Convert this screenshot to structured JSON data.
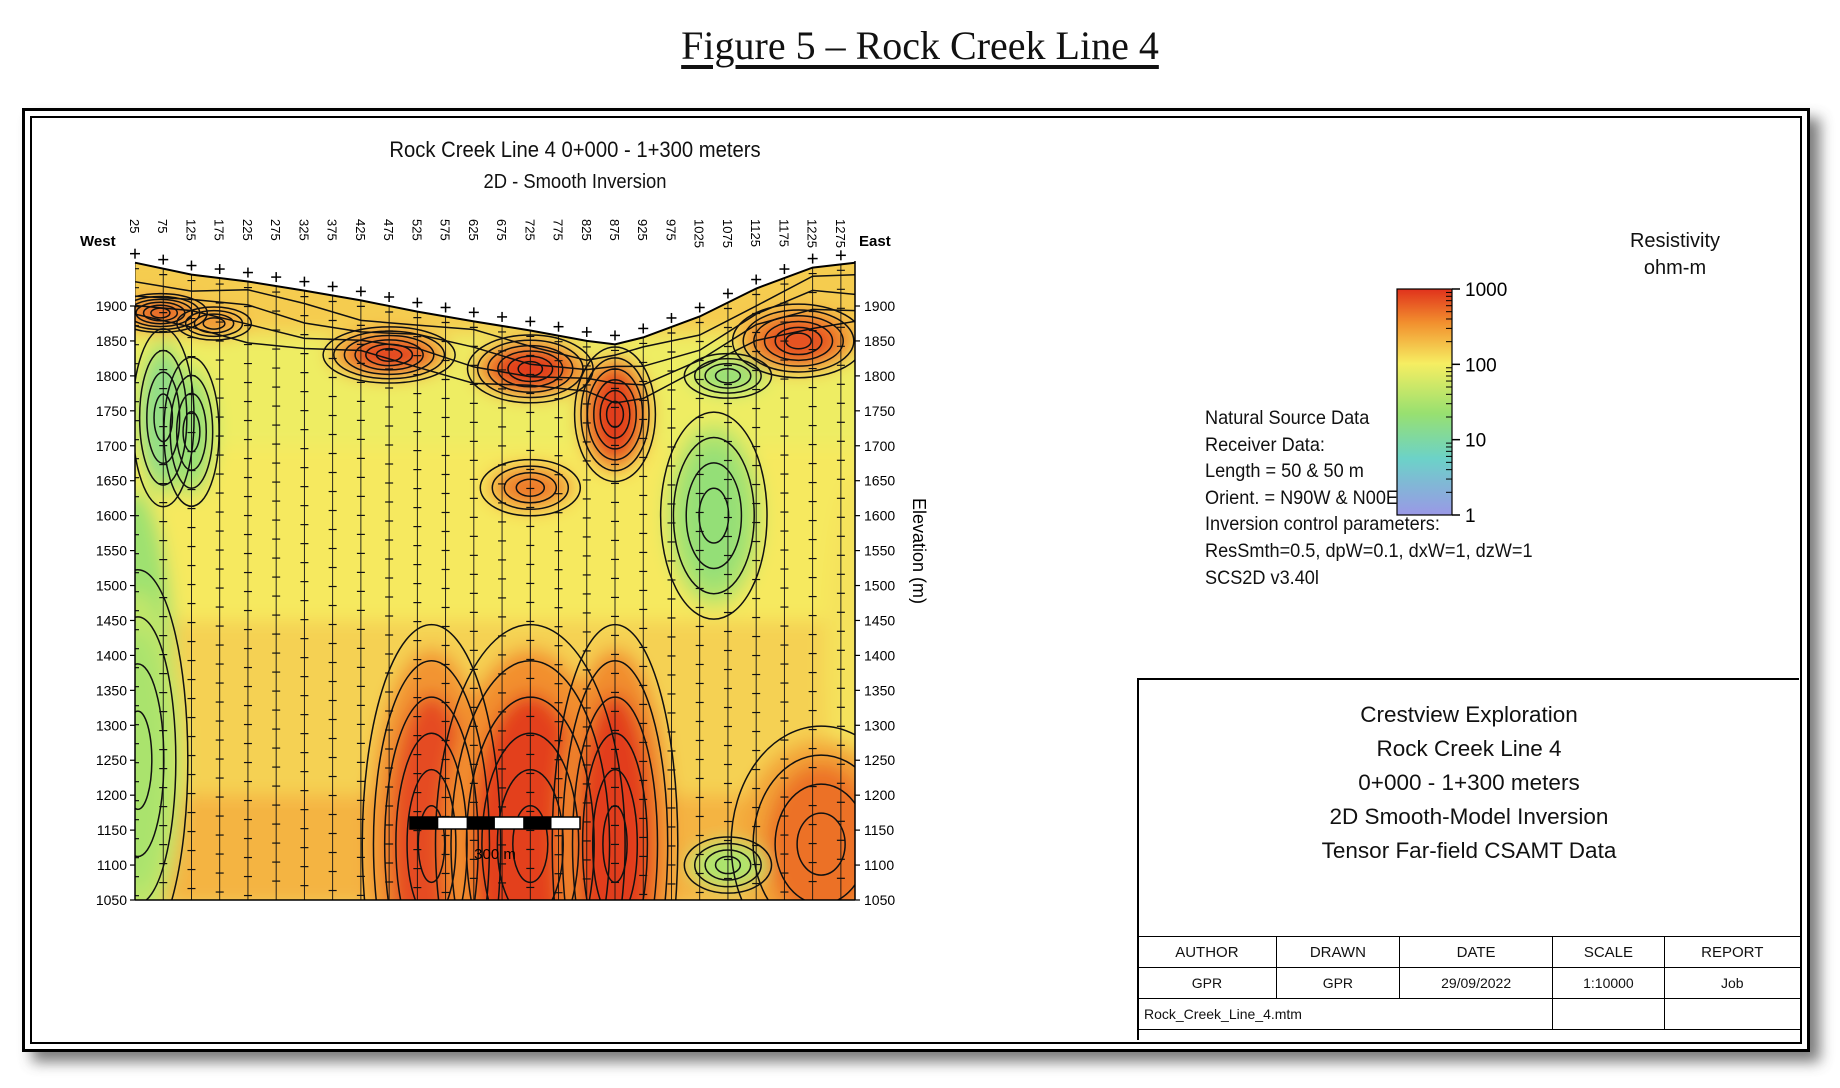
{
  "figure_title": "Figure 5 – Rock Creek Line 4",
  "plot": {
    "title": "Rock Creek Line 4 0+000 - 1+300 meters",
    "subtitle": "2D - Smooth Inversion",
    "west_label": "West",
    "east_label": "East",
    "elevation_label": "Elevation (m)",
    "scale_bar_label": "300 m"
  },
  "colorbar": {
    "title": "Resistivity",
    "unit": "ohm-m",
    "ticks": [
      "1000",
      "100",
      "10",
      "1"
    ]
  },
  "info_lines": [
    "Natural Source Data",
    "Receiver Data:",
    "Length = 50 & 50 m",
    "Orient. = N90W & N00E",
    "Inversion control parameters:",
    "ResSmth=0.5, dpW=0.1, dxW=1, dzW=1",
    "SCS2D v3.40l"
  ],
  "title_block": {
    "lines": [
      "Crestview Exploration",
      "Rock Creek Line 4",
      "0+000 - 1+300 meters",
      "2D Smooth-Model Inversion",
      "Tensor Far-field CSAMT Data"
    ],
    "headers": [
      "AUTHOR",
      "DRAWN",
      "DATE",
      "SCALE",
      "REPORT"
    ],
    "values": [
      "GPR",
      "GPR",
      "29/09/2022",
      "1:10000",
      "Job"
    ],
    "filename": "Rock_Creek_Line_4.mtm"
  },
  "colors": {
    "low": "#9a9ae6",
    "mid_low": "#55d0c8",
    "mid": "#9fe07a",
    "mid_high": "#f6f07a",
    "high": "#f2a23a",
    "very_high": "#e03a1e"
  },
  "chart_data": {
    "type": "heatmap",
    "title": "Rock Creek Line 4 0+000 - 1+300 meters",
    "subtitle": "2D - Smooth Inversion",
    "xlabel": "",
    "ylabel": "Elevation (m)",
    "x_ticks": [
      "25",
      "75",
      "125",
      "175",
      "225",
      "275",
      "325",
      "375",
      "425",
      "475",
      "525",
      "575",
      "625",
      "675",
      "725",
      "775",
      "825",
      "875",
      "925",
      "975",
      "1025",
      "1075",
      "1125",
      "1175",
      "1225",
      "1275"
    ],
    "x_values": [
      25,
      75,
      125,
      175,
      225,
      275,
      325,
      375,
      425,
      475,
      525,
      575,
      625,
      675,
      725,
      775,
      825,
      875,
      925,
      975,
      1025,
      1075,
      1125,
      1175,
      1225,
      1275
    ],
    "xlim": [
      25,
      1300
    ],
    "y_ticks": [
      1900,
      1850,
      1800,
      1750,
      1700,
      1650,
      1600,
      1550,
      1500,
      1450,
      1400,
      1350,
      1300,
      1250,
      1200,
      1150,
      1100,
      1050
    ],
    "ylim": [
      1050,
      1975
    ],
    "surface": {
      "x": [
        25,
        125,
        225,
        325,
        425,
        525,
        625,
        725,
        825,
        875,
        925,
        1025,
        1125,
        1225,
        1300
      ],
      "elev": [
        1962,
        1945,
        1935,
        1922,
        1908,
        1892,
        1878,
        1865,
        1850,
        1845,
        1855,
        1885,
        1925,
        1955,
        1962
      ]
    },
    "colorbar": {
      "label": "Resistivity ohm-m",
      "scale": "log",
      "min": 1,
      "max": 1000,
      "ticks": [
        1,
        10,
        100,
        1000
      ]
    },
    "features": [
      {
        "type": "conductive",
        "x": 75,
        "elev": 1740,
        "resistivity": 15
      },
      {
        "type": "conductive",
        "x": 125,
        "elev": 1720,
        "resistivity": 20
      },
      {
        "type": "resistive",
        "x": 70,
        "elev": 1890,
        "resistivity": 700
      },
      {
        "type": "resistive",
        "x": 165,
        "elev": 1875,
        "resistivity": 400
      },
      {
        "type": "resistive",
        "x": 475,
        "elev": 1830,
        "resistivity": 800
      },
      {
        "type": "resistive",
        "x": 725,
        "elev": 1810,
        "resistivity": 900
      },
      {
        "type": "resistive",
        "x": 875,
        "elev": 1745,
        "resistivity": 900
      },
      {
        "type": "resistive",
        "x": 1200,
        "elev": 1850,
        "resistivity": 700
      },
      {
        "type": "resistive",
        "x": 725,
        "elev": 1640,
        "resistivity": 450
      },
      {
        "type": "conductive",
        "x": 1050,
        "elev": 1600,
        "resistivity": 20
      },
      {
        "type": "conductive",
        "x": 1075,
        "elev": 1800,
        "resistivity": 20
      },
      {
        "type": "resistive",
        "x": 550,
        "elev": 1130,
        "resistivity": 750
      },
      {
        "type": "resistive",
        "x": 725,
        "elev": 1130,
        "resistivity": 850
      },
      {
        "type": "resistive",
        "x": 875,
        "elev": 1130,
        "resistivity": 900
      },
      {
        "type": "resistive",
        "x": 1240,
        "elev": 1130,
        "resistivity": 500
      },
      {
        "type": "conductive",
        "x": 1075,
        "elev": 1100,
        "resistivity": 30
      },
      {
        "type": "conductive",
        "x": 30,
        "elev": 1250,
        "resistivity": 30
      }
    ]
  }
}
